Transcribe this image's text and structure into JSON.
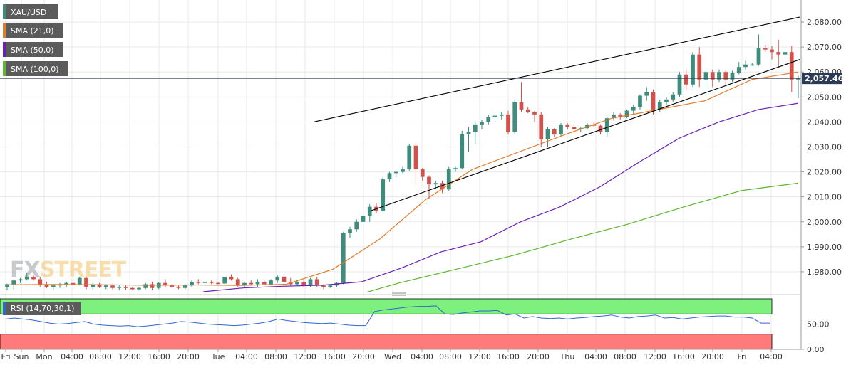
{
  "chart_data": [
    {
      "type": "candlestick",
      "symbol": "XAU/USD",
      "timeframe": "1 hour",
      "price_current": "2,057.46",
      "ylim": [
        1972,
        2086
      ],
      "y_ticks": [
        "1,980.00",
        "1,990.00",
        "2,000.00",
        "2,010.00",
        "2,020.00",
        "2,030.00",
        "2,040.00",
        "2,050.00",
        "2,060.00",
        "2,070.00",
        "2,080.00"
      ],
      "x_ticks": [
        "Fri",
        "Sun",
        "Mon",
        "04:00",
        "08:00",
        "12:00",
        "16:00",
        "20:00",
        "Tue",
        "04:00",
        "08:00",
        "12:00",
        "16:00",
        "20:00",
        "Wed",
        "04:00",
        "08:00",
        "12:00",
        "16:00",
        "20:00",
        "Thu",
        "04:00",
        "08:00",
        "12:00",
        "16:00",
        "20:00",
        "Fri",
        "04:00"
      ],
      "legend": [
        {
          "label": "XAU/USD",
          "color": "#3d8c7c"
        },
        {
          "label": "SMA (21,0)",
          "color": "#e07b28"
        },
        {
          "label": "SMA (50,0)",
          "color": "#6b1fb8"
        },
        {
          "label": "SMA (100,0)",
          "color": "#5cb82e"
        }
      ],
      "colors": {
        "up": "#3d8c7c",
        "down": "#d1524a"
      },
      "candles_ohlc": [
        [
          1974.0,
          1975.2,
          1972.5,
          1975.0
        ],
        [
          1975.0,
          1977.0,
          1973.0,
          1976.5
        ],
        [
          1976.5,
          1977.5,
          1975.5,
          1977.0
        ],
        [
          1977.0,
          1979.5,
          1976.5,
          1978.0
        ],
        [
          1978.0,
          1978.5,
          1976.5,
          1977.0
        ],
        [
          1977.0,
          1978.0,
          1974.0,
          1975.0
        ],
        [
          1975.0,
          1976.0,
          1973.5,
          1974.0
        ],
        [
          1974.0,
          1975.0,
          1973.0,
          1974.5
        ],
        [
          1974.5,
          1975.5,
          1973.5,
          1975.0
        ],
        [
          1975.0,
          1976.0,
          1974.0,
          1975.5
        ],
        [
          1975.5,
          1976.0,
          1974.5,
          1975.0
        ],
        [
          1975.0,
          1978.0,
          1974.5,
          1977.5
        ],
        [
          1977.5,
          1978.0,
          1973.0,
          1974.0
        ],
        [
          1974.0,
          1975.5,
          1973.0,
          1975.0
        ],
        [
          1975.0,
          1975.5,
          1973.5,
          1974.0
        ],
        [
          1974.0,
          1975.0,
          1973.0,
          1974.5
        ],
        [
          1974.5,
          1975.0,
          1973.0,
          1973.5
        ],
        [
          1973.5,
          1974.5,
          1972.5,
          1974.0
        ],
        [
          1974.0,
          1974.5,
          1972.8,
          1973.5
        ],
        [
          1973.5,
          1974.0,
          1972.5,
          1973.0
        ],
        [
          1973.0,
          1974.0,
          1972.5,
          1973.5
        ],
        [
          1973.5,
          1975.5,
          1973.0,
          1975.0
        ],
        [
          1975.0,
          1976.0,
          1972.5,
          1973.5
        ],
        [
          1973.5,
          1976.0,
          1973.0,
          1975.5
        ],
        [
          1975.5,
          1977.0,
          1974.0,
          1974.5
        ],
        [
          1974.5,
          1975.0,
          1973.5,
          1974.0
        ],
        [
          1974.0,
          1974.5,
          1973.0,
          1973.5
        ],
        [
          1973.5,
          1975.0,
          1973.0,
          1974.5
        ],
        [
          1974.5,
          1976.5,
          1974.0,
          1976.0
        ],
        [
          1976.0,
          1977.0,
          1975.0,
          1975.5
        ],
        [
          1975.5,
          1976.5,
          1975.0,
          1976.0
        ],
        [
          1976.0,
          1976.5,
          1975.0,
          1975.5
        ],
        [
          1975.5,
          1976.0,
          1975.0,
          1975.3
        ],
        [
          1975.3,
          1978.0,
          1975.0,
          1978.0
        ],
        [
          1978.0,
          1979.0,
          1976.5,
          1977.0
        ],
        [
          1977.0,
          1977.5,
          1974.0,
          1974.5
        ],
        [
          1974.5,
          1976.0,
          1973.5,
          1975.5
        ],
        [
          1975.5,
          1976.5,
          1974.5,
          1975.0
        ],
        [
          1975.0,
          1977.0,
          1974.0,
          1976.0
        ],
        [
          1976.0,
          1976.5,
          1974.5,
          1975.0
        ],
        [
          1975.0,
          1977.0,
          1974.5,
          1976.5
        ],
        [
          1976.5,
          1978.5,
          1975.5,
          1978.0
        ],
        [
          1978.0,
          1978.5,
          1975.5,
          1976.0
        ],
        [
          1976.0,
          1977.5,
          1974.5,
          1975.0
        ],
        [
          1975.0,
          1976.5,
          1974.5,
          1976.0
        ],
        [
          1976.0,
          1976.5,
          1974.0,
          1974.5
        ],
        [
          1974.5,
          1977.5,
          1974.0,
          1977.0
        ],
        [
          1977.0,
          1978.0,
          1974.0,
          1974.5
        ],
        [
          1974.5,
          1975.0,
          1973.0,
          1974.0
        ],
        [
          1974.0,
          1975.0,
          1973.5,
          1974.5
        ],
        [
          1974.5,
          1976.0,
          1974.0,
          1975.5
        ],
        [
          1975.5,
          1996.0,
          1975.0,
          1995.5
        ],
        [
          1995.5,
          1998.0,
          1993.5,
          1997.0
        ],
        [
          1997.0,
          2001.0,
          1996.0,
          2000.0
        ],
        [
          2000.0,
          2003.0,
          1998.5,
          2002.5
        ],
        [
          2002.5,
          2007.0,
          2000.0,
          2006.0
        ],
        [
          2006.0,
          2007.5,
          2003.5,
          2004.5
        ],
        [
          2004.5,
          2018.0,
          2004.0,
          2017.0
        ],
        [
          2017.0,
          2020.0,
          2016.0,
          2019.5
        ],
        [
          2019.5,
          2020.5,
          2018.0,
          2020.0
        ],
        [
          2020.0,
          2022.0,
          2019.5,
          2021.0
        ],
        [
          2021.0,
          2031.0,
          2020.5,
          2030.5
        ],
        [
          2030.5,
          2031.0,
          2015.0,
          2021.0
        ],
        [
          2021.0,
          2021.5,
          2016.5,
          2018.0
        ],
        [
          2018.0,
          2018.5,
          2009.0,
          2015.0
        ],
        [
          2015.0,
          2016.5,
          2013.0,
          2015.5
        ],
        [
          2015.5,
          2016.5,
          2011.5,
          2013.0
        ],
        [
          2013.0,
          2022.0,
          2012.5,
          2021.0
        ],
        [
          2021.0,
          2022.0,
          2020.0,
          2021.5
        ],
        [
          2021.5,
          2036.5,
          2021.0,
          2035.0
        ],
        [
          2035.0,
          2038.0,
          2028.0,
          2036.0
        ],
        [
          2036.0,
          2040.0,
          2031.0,
          2039.0
        ],
        [
          2039.0,
          2041.0,
          2037.0,
          2040.0
        ],
        [
          2040.0,
          2043.0,
          2039.0,
          2042.0
        ],
        [
          2042.0,
          2044.0,
          2040.0,
          2042.5
        ],
        [
          2042.5,
          2044.0,
          2041.0,
          2043.0
        ],
        [
          2043.0,
          2044.5,
          2035.0,
          2036.0
        ],
        [
          2036.0,
          2049.0,
          2035.0,
          2048.0
        ],
        [
          2048.0,
          2056.0,
          2044.0,
          2045.0
        ],
        [
          2045.0,
          2046.0,
          2043.5,
          2044.0
        ],
        [
          2044.0,
          2044.5,
          2040.0,
          2043.0
        ],
        [
          2043.0,
          2044.0,
          2030.0,
          2033.0
        ],
        [
          2033.0,
          2038.0,
          2030.0,
          2037.0
        ],
        [
          2037.0,
          2037.5,
          2034.0,
          2035.0
        ],
        [
          2035.0,
          2039.5,
          2034.0,
          2039.0
        ],
        [
          2039.0,
          2039.5,
          2037.0,
          2038.0
        ],
        [
          2038.0,
          2038.5,
          2035.0,
          2037.0
        ],
        [
          2037.0,
          2038.0,
          2036.0,
          2037.5
        ],
        [
          2037.5,
          2039.5,
          2037.0,
          2039.0
        ],
        [
          2039.0,
          2040.0,
          2038.0,
          2038.5
        ],
        [
          2038.5,
          2039.0,
          2035.0,
          2036.0
        ],
        [
          2036.0,
          2042.0,
          2034.0,
          2041.5
        ],
        [
          2041.5,
          2044.0,
          2040.5,
          2043.0
        ],
        [
          2043.0,
          2043.5,
          2041.0,
          2042.0
        ],
        [
          2042.0,
          2045.0,
          2041.5,
          2044.5
        ],
        [
          2044.5,
          2047.0,
          2043.0,
          2046.0
        ],
        [
          2046.0,
          2051.0,
          2045.0,
          2050.5
        ],
        [
          2050.5,
          2054.0,
          2048.5,
          2052.0
        ],
        [
          2052.0,
          2053.0,
          2043.0,
          2045.0
        ],
        [
          2045.0,
          2049.0,
          2044.0,
          2048.0
        ],
        [
          2048.0,
          2050.0,
          2047.0,
          2049.0
        ],
        [
          2049.0,
          2052.0,
          2048.0,
          2051.0
        ],
        [
          2051.0,
          2060.0,
          2050.0,
          2059.0
        ],
        [
          2059.0,
          2061.0,
          2053.0,
          2055.0
        ],
        [
          2055.0,
          2068.0,
          2054.0,
          2067.0
        ],
        [
          2067.0,
          2070.0,
          2054.0,
          2057.0
        ],
        [
          2057.0,
          2061.0,
          2050.5,
          2060.0
        ],
        [
          2060.0,
          2061.0,
          2054.0,
          2057.0
        ],
        [
          2057.0,
          2061.0,
          2056.0,
          2060.0
        ],
        [
          2060.0,
          2060.5,
          2055.0,
          2057.0
        ],
        [
          2057.0,
          2060.5,
          2056.0,
          2059.5
        ],
        [
          2059.5,
          2064.0,
          2059.0,
          2062.0
        ],
        [
          2062.0,
          2064.5,
          2061.0,
          2063.0
        ],
        [
          2063.0,
          2063.5,
          2062.5,
          2063.0
        ],
        [
          2063.0,
          2075.0,
          2062.5,
          2069.5
        ],
        [
          2069.5,
          2071.0,
          2068.0,
          2069.0
        ],
        [
          2069.0,
          2070.5,
          2065.0,
          2068.0
        ],
        [
          2068.0,
          2073.0,
          2062.0,
          2067.0
        ],
        [
          2067.0,
          2069.0,
          2065.0,
          2068.0
        ],
        [
          2068.0,
          2070.5,
          2052.0,
          2057.0
        ],
        [
          2057.0,
          2058.5,
          2049.5,
          2057.5
        ]
      ],
      "sma_21": [
        1974.8,
        1974.9,
        1974.8,
        1974.6,
        1974.7,
        1974.5,
        1975.0,
        1981.0,
        1993.0,
        2009.0,
        2021.0,
        2028.0,
        2035.0,
        2041.5,
        2045.0,
        2048.5,
        2057.0,
        2060.0
      ],
      "sma_50": [
        1972.0,
        1973.5,
        1974.2,
        1974.6,
        1976.0,
        1981.5,
        1988.0,
        1992.0,
        2000.0,
        2006.0,
        2014.0,
        2024.0,
        2033.5,
        2040.0,
        2045.0,
        2047.5
      ],
      "sma_100": [
        1969.0,
        1975.5,
        1981.0,
        1986.5,
        1993.0,
        1999.0,
        2006.0,
        2012.5,
        2015.5
      ],
      "trendlines": [
        {
          "from": [
            "Tue 16:00",
            2040.0
          ],
          "to": [
            "Fri 06:00",
            2082.0
          ]
        },
        {
          "from": [
            "Tue 22:00",
            2004.5
          ],
          "to": [
            "Fri 06:00",
            2065.0
          ]
        }
      ]
    },
    {
      "type": "line",
      "indicator": "RSI",
      "label": "RSI (14,70,30,1)",
      "ylim": [
        0,
        100
      ],
      "overbought": 70,
      "oversold": 30,
      "y_ticks": [
        "50.00",
        "0.00"
      ],
      "zones": {
        "overbought_color": "#7ef07e",
        "oversold_color": "#ff7a7a"
      },
      "line_color": "#3366cc",
      "values": [
        60,
        62,
        60,
        58,
        55,
        52,
        50,
        51,
        53,
        55,
        50,
        48,
        47,
        46,
        47,
        45,
        46,
        48,
        50,
        52,
        55,
        54,
        52,
        50,
        49,
        48,
        47,
        48,
        50,
        52,
        55,
        60,
        57,
        55,
        53,
        52,
        51,
        52,
        50,
        48,
        47,
        47,
        75,
        78,
        80,
        82,
        84,
        85,
        85,
        86,
        70,
        69,
        72,
        74,
        76,
        76,
        77,
        68,
        70,
        62,
        65,
        62,
        61,
        62,
        60,
        62,
        63,
        65,
        66,
        68,
        64,
        62,
        65,
        66,
        68,
        62,
        63,
        60,
        62,
        64,
        65,
        66,
        66,
        64,
        64,
        62,
        52,
        52
      ]
    }
  ],
  "watermark": "FXSTREET"
}
